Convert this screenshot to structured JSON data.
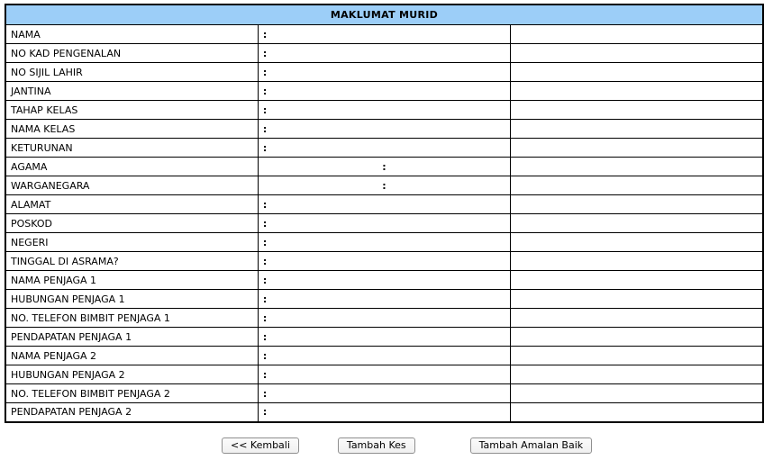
{
  "page": {
    "title": "MAKLUMAT MURID"
  },
  "colors": {
    "header_bg": "#9CCEF8",
    "table_border": "#000000",
    "button_border": "#8f8f8f"
  },
  "separator": ":",
  "rows": [
    {
      "label": "NAMA",
      "value": ""
    },
    {
      "label": "NO KAD PENGENALAN",
      "value": ""
    },
    {
      "label": "NO SIJIL LAHIR",
      "value": ""
    },
    {
      "label": "JANTINA",
      "value": ""
    },
    {
      "label": "TAHAP KELAS",
      "value": ""
    },
    {
      "label": "NAMA KELAS",
      "value": ""
    },
    {
      "label": "KETURUNAN",
      "value": ""
    },
    {
      "label": "AGAMA",
      "value": ""
    },
    {
      "label": "WARGANEGARA",
      "value": ""
    },
    {
      "label": "ALAMAT",
      "value": ""
    },
    {
      "label": "POSKOD",
      "value": ""
    },
    {
      "label": "NEGERI",
      "value": ""
    },
    {
      "label": "TINGGAL DI ASRAMA?",
      "value": ""
    },
    {
      "label": "NAMA PENJAGA 1",
      "value": ""
    },
    {
      "label": "HUBUNGAN PENJAGA 1",
      "value": ""
    },
    {
      "label": "NO. TELEFON BIMBIT PENJAGA 1",
      "value": ""
    },
    {
      "label": "PENDAPATAN PENJAGA 1",
      "value": ""
    },
    {
      "label": "NAMA PENJAGA 2",
      "value": ""
    },
    {
      "label": "HUBUNGAN PENJAGA 2",
      "value": ""
    },
    {
      "label": "NO. TELEFON BIMBIT PENJAGA 2",
      "value": ""
    },
    {
      "label": "PENDAPATAN PENJAGA 2",
      "value": ""
    }
  ],
  "buttons": {
    "back": "<< Kembali",
    "add_case": "Tambah Kes",
    "add_good_practice": "Tambah Amalan Baik"
  }
}
